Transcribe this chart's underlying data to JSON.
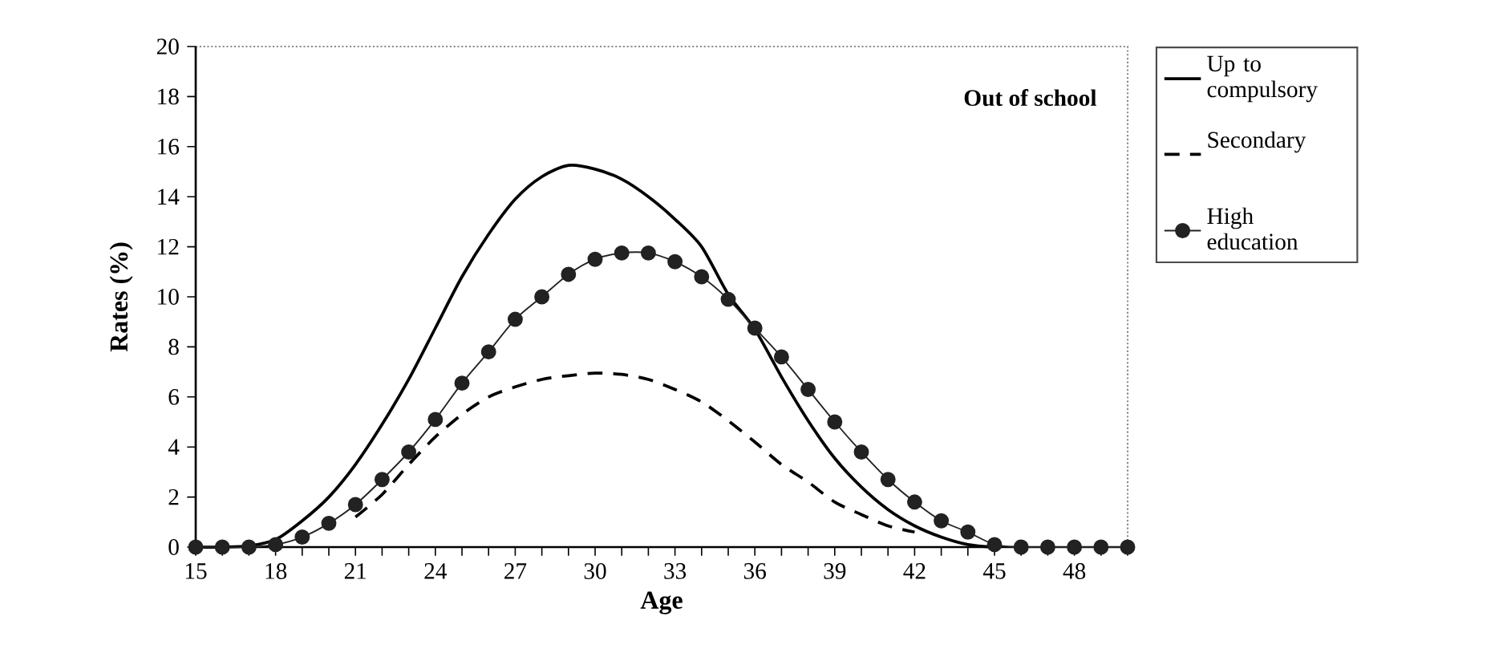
{
  "chart_data": {
    "type": "line",
    "xlabel": "Age",
    "ylabel": "Rates (%)",
    "annotations": [
      "Out of school"
    ],
    "xlim": [
      15,
      50
    ],
    "ylim": [
      0,
      20
    ],
    "xticks": [
      15,
      {
        "value": 16,
        "label": null
      },
      {
        "value": 17,
        "label": null
      },
      18,
      {
        "value": 19,
        "label": null
      },
      {
        "value": 20,
        "label": null
      },
      21,
      {
        "value": 22,
        "label": null
      },
      {
        "value": 23,
        "label": null
      },
      24,
      {
        "value": 25,
        "label": null
      },
      {
        "value": 26,
        "label": null
      },
      27,
      {
        "value": 28,
        "label": null
      },
      {
        "value": 29,
        "label": null
      },
      30,
      {
        "value": 31,
        "label": null
      },
      {
        "value": 32,
        "label": null
      },
      33,
      {
        "value": 34,
        "label": null
      },
      {
        "value": 35,
        "label": null
      },
      36,
      {
        "value": 37,
        "label": null
      },
      {
        "value": 38,
        "label": null
      },
      39,
      {
        "value": 40,
        "label": null
      },
      {
        "value": 41,
        "label": null
      },
      42,
      {
        "value": 43,
        "label": null
      },
      {
        "value": 44,
        "label": null
      },
      45,
      {
        "value": 46,
        "label": null
      },
      {
        "value": 47,
        "label": null
      },
      48,
      {
        "value": 49,
        "label": null
      },
      {
        "value": 50,
        "label": null
      }
    ],
    "yticks": [
      0,
      2,
      4,
      6,
      8,
      10,
      12,
      14,
      16,
      18,
      20
    ],
    "legend": "right",
    "grid": false,
    "series": [
      {
        "name": "Up to compulsory",
        "color": "#000000",
        "line_style": "solid",
        "marker": "none",
        "x": [
          15,
          16,
          17,
          18,
          19,
          20,
          21,
          22,
          23,
          24,
          25,
          26,
          27,
          28,
          29,
          30,
          31,
          32,
          33,
          34,
          35,
          36,
          37,
          38,
          39,
          40,
          41,
          42,
          43,
          44,
          45
        ],
        "values": [
          0,
          0,
          0.05,
          0.3,
          1.05,
          2.0,
          3.3,
          4.9,
          6.7,
          8.75,
          10.8,
          12.5,
          13.9,
          14.8,
          15.25,
          15.1,
          14.7,
          14.0,
          13.1,
          12.0,
          10.1,
          8.7,
          6.8,
          5.05,
          3.55,
          2.4,
          1.5,
          0.85,
          0.4,
          0.1,
          0
        ]
      },
      {
        "name": "Secondary",
        "color": "#000000",
        "line_style": "dashed",
        "marker": "none",
        "x": [
          21,
          22,
          23,
          24,
          25,
          26,
          27,
          28,
          29,
          30,
          31,
          32,
          33,
          34,
          35,
          36,
          37,
          38,
          39,
          40,
          41,
          42
        ],
        "values": [
          1.2,
          2.1,
          3.3,
          4.4,
          5.3,
          6.0,
          6.4,
          6.7,
          6.85,
          6.95,
          6.9,
          6.7,
          6.3,
          5.8,
          5.05,
          4.2,
          3.3,
          2.6,
          1.8,
          1.3,
          0.85,
          0.6
        ]
      },
      {
        "name": "High education",
        "color": "#222222",
        "line_style": "solid",
        "marker": "circle",
        "x": [
          15,
          16,
          17,
          18,
          19,
          20,
          21,
          22,
          23,
          24,
          25,
          26,
          27,
          28,
          29,
          30,
          31,
          32,
          33,
          34,
          35,
          36,
          37,
          38,
          39,
          40,
          41,
          42,
          43,
          44,
          45,
          46,
          47,
          48,
          49,
          50
        ],
        "values": [
          0,
          0,
          0,
          0.1,
          0.4,
          0.95,
          1.7,
          2.7,
          3.8,
          5.1,
          6.55,
          7.8,
          9.1,
          10.0,
          10.9,
          11.5,
          11.75,
          11.75,
          11.4,
          10.8,
          9.9,
          8.75,
          7.6,
          6.3,
          5.0,
          3.8,
          2.7,
          1.8,
          1.05,
          0.6,
          0.1,
          0,
          0,
          0,
          0,
          0
        ]
      }
    ]
  }
}
